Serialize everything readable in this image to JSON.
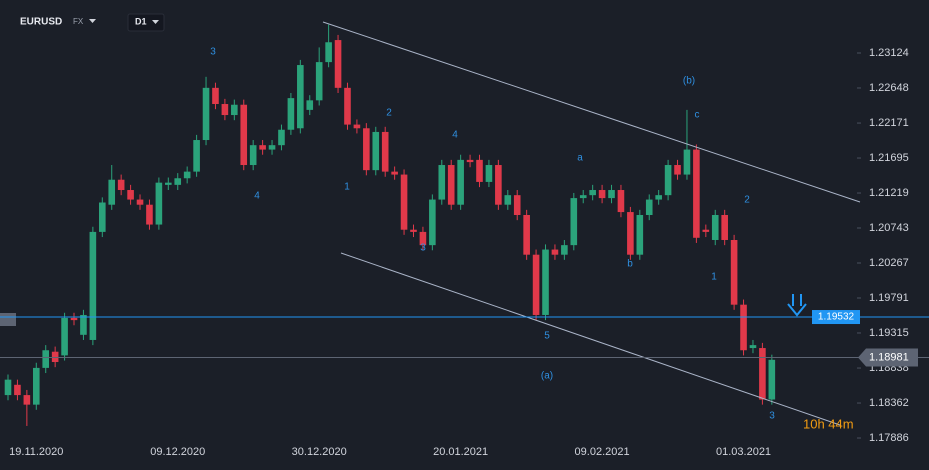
{
  "chart_data": {
    "type": "candlestick",
    "symbol": "EURUSD",
    "market": "FX",
    "timeframe": "D1",
    "countdown": "10h 44m",
    "up_color": "#2ba37b",
    "down_color": "#e0394a",
    "grid": false,
    "categories": [
      null,
      null,
      null,
      "19.11.2020",
      null,
      null,
      null,
      null,
      null,
      null,
      null,
      null,
      null,
      null,
      null,
      null,
      null,
      null,
      "09.12.2020",
      null,
      null,
      null,
      null,
      null,
      null,
      null,
      null,
      null,
      null,
      null,
      null,
      null,
      null,
      "30.12.2020",
      null,
      null,
      null,
      null,
      null,
      null,
      null,
      null,
      null,
      null,
      null,
      null,
      null,
      null,
      "20.01.2021",
      null,
      null,
      null,
      null,
      null,
      null,
      null,
      null,
      null,
      null,
      null,
      null,
      null,
      null,
      "09.02.2021",
      null,
      null,
      null,
      null,
      null,
      null,
      null,
      null,
      null,
      null,
      null,
      null,
      null,
      null,
      "01.03.2021",
      null,
      null,
      null
    ],
    "open": [
      1.1847,
      1.1861,
      1.1847,
      1.1834,
      1.1884,
      1.1906,
      1.1901,
      1.1952,
      1.1929,
      1.1922,
      1.2069,
      1.2106,
      1.214,
      1.2126,
      1.2113,
      1.2106,
      1.2079,
      1.2133,
      1.2133,
      1.2142,
      1.2151,
      1.2194,
      1.2265,
      1.2243,
      1.2228,
      1.2242,
      1.216,
      1.2187,
      1.2181,
      1.2187,
      1.2208,
      1.221,
      1.2235,
      1.2248,
      1.23,
      1.233,
      1.2265,
      1.2215,
      1.221,
      1.2153,
      1.2205,
      1.2151,
      1.2147,
      1.2072,
      1.2069,
      1.2051,
      1.2113,
      1.216,
      1.2106,
      1.2167,
      1.2167,
      1.2137,
      1.216,
      1.2106,
      1.2119,
      1.2092,
      1.2038,
      1.1956,
      1.2045,
      1.2038,
      1.2051,
      1.2115,
      1.2119,
      1.2126,
      1.2115,
      1.2126,
      1.2096,
      1.2038,
      1.2092,
      1.2113,
      1.2119,
      1.216,
      1.2147,
      1.2181,
      1.2072,
      1.2058,
      1.2092,
      1.2058,
      1.197,
      1.1911,
      1.1911,
      1.1841
    ],
    "high": [
      1.1875,
      1.1868,
      1.1854,
      1.1891,
      1.1915,
      1.1913,
      1.1959,
      1.1959,
      1.1963,
      1.2076,
      1.2116,
      1.216,
      1.2147,
      1.2133,
      1.212,
      1.2113,
      1.2143,
      1.2143,
      1.2149,
      1.2158,
      1.2201,
      1.228,
      1.2272,
      1.225,
      1.2249,
      1.2249,
      1.2194,
      1.2194,
      1.2194,
      1.2215,
      1.2258,
      1.2303,
      1.2255,
      1.232,
      1.2351,
      1.2337,
      1.2272,
      1.2222,
      1.2217,
      1.2212,
      1.2212,
      1.2158,
      1.2154,
      1.2079,
      1.2076,
      1.212,
      1.2167,
      1.2167,
      1.2174,
      1.2174,
      1.2174,
      1.2167,
      1.2167,
      1.2126,
      1.2126,
      1.2099,
      1.2045,
      1.2052,
      1.2052,
      1.2058,
      1.2122,
      1.2126,
      1.2133,
      1.2133,
      1.2133,
      1.2133,
      1.2103,
      1.2099,
      1.212,
      1.2126,
      1.2167,
      1.2167,
      1.2235,
      1.2188,
      1.2079,
      1.2099,
      1.2099,
      1.2065,
      1.1977,
      1.1922,
      1.1918,
      1.1902
    ],
    "low": [
      1.184,
      1.184,
      1.1805,
      1.1827,
      1.1877,
      1.1885,
      1.1894,
      1.1942,
      1.1922,
      1.1915,
      1.2062,
      1.2099,
      1.2119,
      1.2106,
      1.2099,
      1.2072,
      1.2072,
      1.2126,
      1.2126,
      1.2135,
      1.2144,
      1.2187,
      1.2236,
      1.2221,
      1.2221,
      1.2153,
      1.2153,
      1.2174,
      1.2174,
      1.218,
      1.2201,
      1.2203,
      1.2228,
      1.2241,
      1.2293,
      1.2258,
      1.2208,
      1.2203,
      1.2146,
      1.2146,
      1.2144,
      1.214,
      1.2065,
      1.2062,
      1.2044,
      1.2044,
      1.2106,
      1.2099,
      1.2099,
      1.2157,
      1.213,
      1.213,
      1.2099,
      1.2099,
      1.2085,
      1.2031,
      1.1949,
      1.1949,
      1.2031,
      1.2031,
      1.2044,
      1.2108,
      1.2112,
      1.2108,
      1.2108,
      1.2089,
      1.2031,
      1.2031,
      1.2085,
      1.2106,
      1.2112,
      1.214,
      1.214,
      1.2054,
      1.2062,
      1.2051,
      1.2051,
      1.1963,
      1.1901,
      1.1904,
      1.1834,
      1.1834
    ],
    "close": [
      1.1868,
      1.1847,
      1.1834,
      1.1884,
      1.1908,
      1.1892,
      1.1952,
      1.1949,
      1.1956,
      1.2069,
      1.2109,
      1.214,
      1.2126,
      1.2113,
      1.2106,
      1.2079,
      1.2136,
      1.2136,
      1.2142,
      1.2151,
      1.2194,
      1.2265,
      1.2243,
      1.2228,
      1.2242,
      1.216,
      1.2187,
      1.2181,
      1.2187,
      1.2208,
      1.2251,
      1.2296,
      1.2248,
      1.23,
      1.2327,
      1.2265,
      1.2215,
      1.221,
      1.2153,
      1.2205,
      1.2151,
      1.2147,
      1.2072,
      1.2069,
      1.2051,
      1.2113,
      1.216,
      1.2106,
      1.2167,
      1.2164,
      1.2137,
      1.216,
      1.2106,
      1.2119,
      1.2092,
      1.2038,
      1.1956,
      1.2045,
      1.2038,
      1.2051,
      1.2115,
      1.2119,
      1.2126,
      1.2115,
      1.2126,
      1.2096,
      1.2038,
      1.2092,
      1.2113,
      1.2119,
      1.216,
      1.2147,
      1.2181,
      1.2061,
      1.2069,
      1.2092,
      1.2058,
      1.197,
      1.1908,
      1.1915,
      1.1841,
      1.1895
    ],
    "ylim": [
      1.17791,
      1.23845
    ],
    "yticks": [
      1.23124,
      1.22648,
      1.22171,
      1.21695,
      1.21219,
      1.20743,
      1.20267,
      1.19791,
      1.19315,
      1.18838,
      1.18362,
      1.17886
    ],
    "price_lines": [
      {
        "value": 1.19532,
        "color": "#2196f3"
      },
      {
        "value": 1.18981,
        "color": "#5d6473"
      }
    ],
    "annotations": [
      "3",
      "2",
      "4",
      "1",
      "4",
      "3",
      "5",
      "(a)",
      "a",
      "b",
      "(b)",
      "c",
      "2",
      "1",
      "3"
    ]
  }
}
